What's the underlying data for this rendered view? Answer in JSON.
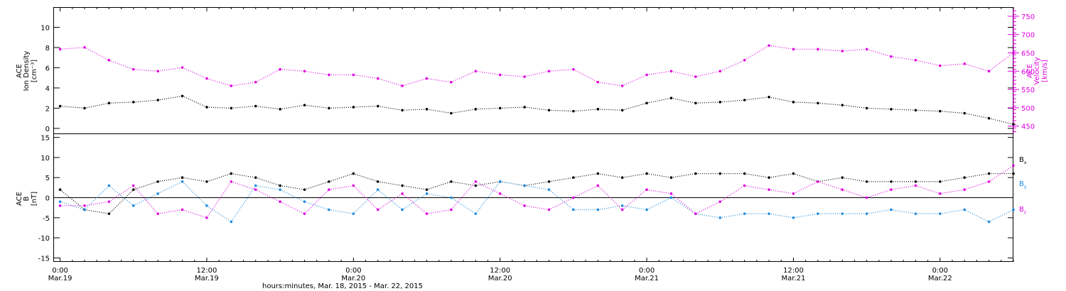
{
  "chart_data": [
    {
      "type": "scatter",
      "panel": "top",
      "ylabel_lines": [
        "ACE",
        "Ion Density",
        "[cm⁻³]"
      ],
      "ylabel_right_lines": [
        "ACE",
        "Velocity",
        "[km/s]"
      ],
      "ylim": [
        -0.5,
        12
      ],
      "ylim_right": [
        430,
        775
      ],
      "yticks": [
        0,
        2,
        4,
        6,
        8,
        10
      ],
      "yticks_right": [
        450,
        500,
        550,
        600,
        650,
        700,
        750
      ],
      "series": [
        {
          "name": "Ion Density",
          "color": "#000000",
          "axis": "left",
          "x": [
            0,
            2,
            4,
            6,
            8,
            10,
            12,
            14,
            16,
            18,
            20,
            22,
            24,
            26,
            28,
            30,
            32,
            34,
            36,
            38,
            40,
            42,
            44,
            46,
            48,
            50,
            52,
            54,
            56,
            58,
            60,
            62,
            64,
            66,
            68,
            70,
            72,
            74,
            76,
            78
          ],
          "y": [
            2.2,
            2.0,
            2.5,
            2.6,
            2.8,
            3.2,
            2.1,
            2.0,
            2.2,
            1.9,
            2.3,
            2.0,
            2.1,
            2.2,
            1.8,
            1.9,
            1.5,
            1.9,
            2.0,
            2.1,
            1.8,
            1.7,
            1.9,
            1.8,
            2.5,
            3.0,
            2.5,
            2.6,
            2.8,
            3.1,
            2.6,
            2.5,
            2.3,
            2.0,
            1.9,
            1.8,
            1.7,
            1.5,
            1.0,
            0.4
          ]
        },
        {
          "name": "Velocity",
          "color": "#e000e0",
          "axis": "right",
          "x": [
            0,
            2,
            4,
            6,
            8,
            10,
            12,
            14,
            16,
            18,
            20,
            22,
            24,
            26,
            28,
            30,
            32,
            34,
            36,
            38,
            40,
            42,
            44,
            46,
            48,
            50,
            52,
            54,
            56,
            58,
            60,
            62,
            64,
            66,
            68,
            70,
            72,
            74,
            76,
            78
          ],
          "y": [
            660,
            665,
            630,
            605,
            600,
            610,
            580,
            560,
            570,
            605,
            600,
            590,
            590,
            580,
            560,
            580,
            570,
            600,
            590,
            585,
            600,
            605,
            570,
            560,
            590,
            600,
            585,
            600,
            630,
            670,
            660,
            660,
            655,
            660,
            640,
            630,
            615,
            620,
            600,
            650
          ]
        }
      ]
    },
    {
      "type": "scatter",
      "panel": "bottom",
      "ylabel_lines": [
        "ACE",
        "B",
        "[nT]"
      ],
      "ylim": [
        -16,
        16
      ],
      "yticks": [
        -15,
        -10,
        -5,
        0,
        5,
        10,
        15
      ],
      "series": [
        {
          "name": "Bx",
          "color": "#000000",
          "x": [
            0,
            2,
            4,
            6,
            8,
            10,
            12,
            14,
            16,
            18,
            20,
            22,
            24,
            26,
            28,
            30,
            32,
            34,
            36,
            38,
            40,
            42,
            44,
            46,
            48,
            50,
            52,
            54,
            56,
            58,
            60,
            62,
            64,
            66,
            68,
            70,
            72,
            74,
            76,
            78
          ],
          "y": [
            2,
            -3,
            -4,
            2,
            4,
            5,
            4,
            6,
            5,
            3,
            2,
            4,
            6,
            4,
            3,
            2,
            4,
            3,
            4,
            3,
            4,
            5,
            6,
            5,
            6,
            5,
            6,
            6,
            6,
            5,
            6,
            4,
            5,
            4,
            4,
            4,
            4,
            5,
            6,
            6
          ]
        },
        {
          "name": "By",
          "color": "#1a8ae0",
          "x": [
            0,
            2,
            4,
            6,
            8,
            10,
            12,
            14,
            16,
            18,
            20,
            22,
            24,
            26,
            28,
            30,
            32,
            34,
            36,
            38,
            40,
            42,
            44,
            46,
            48,
            50,
            52,
            54,
            56,
            58,
            60,
            62,
            64,
            66,
            68,
            70,
            72,
            74,
            76,
            78
          ],
          "y": [
            -1,
            -3,
            3,
            -2,
            1,
            4,
            -2,
            -6,
            3,
            2,
            -1,
            -3,
            -4,
            2,
            -3,
            1,
            0,
            -4,
            4,
            3,
            2,
            -3,
            -3,
            -2,
            -3,
            0,
            -4,
            -5,
            -4,
            -4,
            -5,
            -4,
            -4,
            -4,
            -3,
            -4,
            -4,
            -3,
            -6,
            -3
          ]
        },
        {
          "name": "Bz",
          "color": "#e000e0",
          "x": [
            0,
            2,
            4,
            6,
            8,
            10,
            12,
            14,
            16,
            18,
            20,
            22,
            24,
            26,
            28,
            30,
            32,
            34,
            36,
            38,
            40,
            42,
            44,
            46,
            48,
            50,
            52,
            54,
            56,
            58,
            60,
            62,
            64,
            66,
            68,
            70,
            72,
            74,
            76,
            78
          ],
          "y": [
            -2,
            -2,
            -1,
            3,
            -4,
            -3,
            -5,
            4,
            2,
            -1,
            -4,
            2,
            3,
            -3,
            1,
            -4,
            -3,
            4,
            1,
            -2,
            -3,
            0,
            3,
            -3,
            2,
            1,
            -4,
            -1,
            3,
            2,
            1,
            4,
            2,
            0,
            2,
            3,
            1,
            2,
            4,
            8
          ]
        }
      ],
      "legend": [
        "B",
        "B",
        "B"
      ],
      "legend_subscripts": [
        "x",
        "y",
        "z"
      ],
      "legend_placement": "right"
    }
  ],
  "x_axis": {
    "range_hours": [
      -0.5,
      78
    ],
    "tick_hours": [
      0,
      12,
      24,
      36,
      48,
      60,
      72
    ],
    "tick_labels_time": [
      "0:00",
      "12:00",
      "0:00",
      "12:00",
      "0:00",
      "12:00",
      "0:00"
    ],
    "tick_labels_date": [
      "Mar.19",
      "Mar.19",
      "Mar.20",
      "Mar.20",
      "Mar.21",
      "Mar.21",
      "Mar.22"
    ],
    "xlabel": "hours:minutes, Mar. 18, 2015 - Mar. 22, 2015"
  }
}
